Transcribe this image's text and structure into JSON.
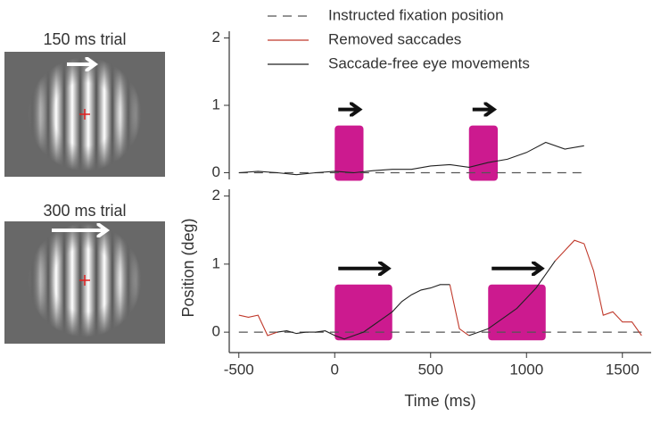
{
  "stimuli": [
    {
      "label": "150 ms trial"
    },
    {
      "label": "300 ms trial"
    }
  ],
  "ylabel": "Position (deg)",
  "chart_data": [
    {
      "type": "line",
      "legend": true,
      "x": [
        -500,
        -400,
        -300,
        -200,
        -100,
        0,
        100,
        200,
        300,
        400,
        500,
        600,
        700,
        800,
        900,
        1000,
        1100,
        1200,
        1300
      ],
      "series": [
        {
          "name": "Instructed fixation position",
          "color": "#555555",
          "dashed": true,
          "values": [
            0,
            0,
            0,
            0,
            0,
            0,
            0,
            0,
            0,
            0,
            0,
            0,
            0,
            0,
            0,
            0,
            0,
            0,
            0
          ]
        },
        {
          "name": "Removed saccades",
          "color": "#c0392b",
          "values": [
            null,
            null,
            null,
            null,
            null,
            null,
            null,
            null,
            null,
            null,
            null,
            null,
            null,
            null,
            null,
            null,
            null,
            null,
            null
          ]
        },
        {
          "name": "Saccade-free eye movements",
          "color": "#222222",
          "values": [
            0.0,
            0.02,
            0.0,
            -0.03,
            0.0,
            0.02,
            0.0,
            0.03,
            0.05,
            0.05,
            0.1,
            0.12,
            0.08,
            0.15,
            0.2,
            0.3,
            0.45,
            0.35,
            0.4
          ]
        }
      ],
      "stimuli": [
        {
          "start": 0,
          "end": 150
        },
        {
          "start": 700,
          "end": 850
        }
      ],
      "stimulus_color": "#cc1a8f",
      "xlim": [
        -550,
        1650
      ],
      "ylim": [
        -0.1,
        2.1
      ],
      "yticks": [
        0,
        1,
        2
      ]
    },
    {
      "type": "line",
      "legend": false,
      "xlabel": "Time (ms)",
      "x": [
        -500,
        -450,
        -400,
        -350,
        -300,
        -250,
        -200,
        -150,
        -100,
        -50,
        0,
        50,
        100,
        150,
        200,
        250,
        300,
        350,
        400,
        450,
        500,
        550,
        600,
        650,
        700,
        750,
        800,
        850,
        900,
        950,
        1000,
        1050,
        1100,
        1150,
        1200,
        1250,
        1300,
        1350,
        1400,
        1450,
        1500,
        1550,
        1600
      ],
      "series": [
        {
          "color": "#555555",
          "dashed": true,
          "values": [
            0,
            0,
            0,
            0,
            0,
            0,
            0,
            0,
            0,
            0,
            0,
            0,
            0,
            0,
            0,
            0,
            0,
            0,
            0,
            0,
            0,
            0,
            0,
            0,
            0,
            0,
            0,
            0,
            0,
            0,
            0,
            0,
            0,
            0,
            0,
            0,
            0,
            0,
            0,
            0,
            0,
            0,
            0
          ]
        },
        {
          "color": "#c0392b",
          "values": [
            0.25,
            0.22,
            0.25,
            -0.05,
            0.0,
            null,
            null,
            null,
            null,
            null,
            null,
            null,
            null,
            null,
            null,
            null,
            null,
            null,
            null,
            null,
            null,
            null,
            0.7,
            0.05,
            -0.05,
            null,
            null,
            null,
            null,
            null,
            null,
            null,
            null,
            1.05,
            1.2,
            1.35,
            1.3,
            0.9,
            0.25,
            0.3,
            0.15,
            0.15,
            -0.05
          ]
        },
        {
          "color": "#222222",
          "values": [
            null,
            null,
            null,
            null,
            0.0,
            0.02,
            -0.02,
            0.0,
            0.0,
            0.02,
            -0.05,
            -0.1,
            -0.05,
            0.0,
            0.1,
            0.2,
            0.3,
            0.45,
            0.55,
            0.62,
            0.65,
            0.7,
            0.7,
            null,
            -0.05,
            0.0,
            0.05,
            0.15,
            0.25,
            0.35,
            0.5,
            0.65,
            0.85,
            1.05,
            null,
            null,
            null,
            null,
            null,
            null,
            null,
            null,
            null
          ]
        }
      ],
      "stimuli": [
        {
          "start": 0,
          "end": 300
        },
        {
          "start": 800,
          "end": 1100
        }
      ],
      "stimulus_color": "#cc1a8f",
      "xlim": [
        -550,
        1650
      ],
      "ylim": [
        -0.3,
        2.1
      ],
      "yticks": [
        0,
        1,
        2
      ],
      "xticks": [
        -500,
        0,
        500,
        1000,
        1500
      ]
    }
  ]
}
